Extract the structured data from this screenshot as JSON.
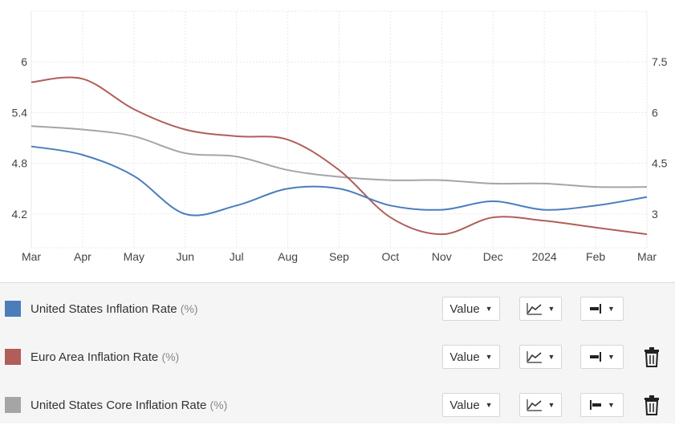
{
  "chart_data": {
    "type": "line",
    "x": [
      "2023-03",
      "2023-04",
      "2023-05",
      "2023-06",
      "2023-07",
      "2023-08",
      "2023-09",
      "2023-10",
      "2023-11",
      "2023-12",
      "2024-01",
      "2024-02",
      "2024-03"
    ],
    "x_tick_labels": [
      "Mar",
      "Apr",
      "May",
      "Jun",
      "Jul",
      "Aug",
      "Sep",
      "Oct",
      "Nov",
      "Dec",
      "2024",
      "Feb",
      "Mar"
    ],
    "y_left": {
      "ticks": [
        "4.2",
        "4.8",
        "5.4",
        "6"
      ],
      "range": [
        3.8,
        6.6
      ]
    },
    "y_right": {
      "ticks": [
        "3",
        "4.5",
        "6",
        "7.5"
      ],
      "range": [
        2,
        9
      ]
    },
    "grid": true,
    "series": [
      {
        "name": "United States Inflation Rate",
        "unit": "(%)",
        "color": "#4a7ebb",
        "axis": "left",
        "values": [
          5.0,
          4.9,
          4.65,
          4.2,
          4.3,
          4.5,
          4.5,
          4.3,
          4.25,
          4.35,
          4.25,
          4.3,
          4.4
        ]
      },
      {
        "name": "Euro Area Inflation Rate",
        "unit": "(%)",
        "color": "#b05e5a",
        "axis": "right",
        "values": [
          6.9,
          7.0,
          6.1,
          5.5,
          5.3,
          5.2,
          4.3,
          2.9,
          2.4,
          2.9,
          2.8,
          2.6,
          2.4
        ]
      },
      {
        "name": "United States Core Inflation Rate",
        "unit": "(%)",
        "color": "#a5a5a5",
        "axis": "right",
        "values": [
          5.6,
          5.5,
          5.3,
          4.8,
          4.7,
          4.3,
          4.1,
          4.0,
          4.0,
          3.9,
          3.9,
          3.8,
          3.8
        ]
      }
    ]
  },
  "legend": {
    "rows": [
      {
        "name": "United States Inflation Rate",
        "unit": "(%)",
        "value_label": "Value",
        "swatch_color": "#4a7ebb",
        "show_delete": false,
        "axis_icon": "right-axis-icon"
      },
      {
        "name": "Euro Area Inflation Rate",
        "unit": "(%)",
        "value_label": "Value",
        "swatch_color": "#b05e5a",
        "show_delete": true,
        "axis_icon": "right-axis-icon"
      },
      {
        "name": "United States Core Inflation Rate",
        "unit": "(%)",
        "value_label": "Value",
        "swatch_color": "#a5a5a5",
        "show_delete": true,
        "axis_icon": "left-axis-icon"
      }
    ]
  }
}
